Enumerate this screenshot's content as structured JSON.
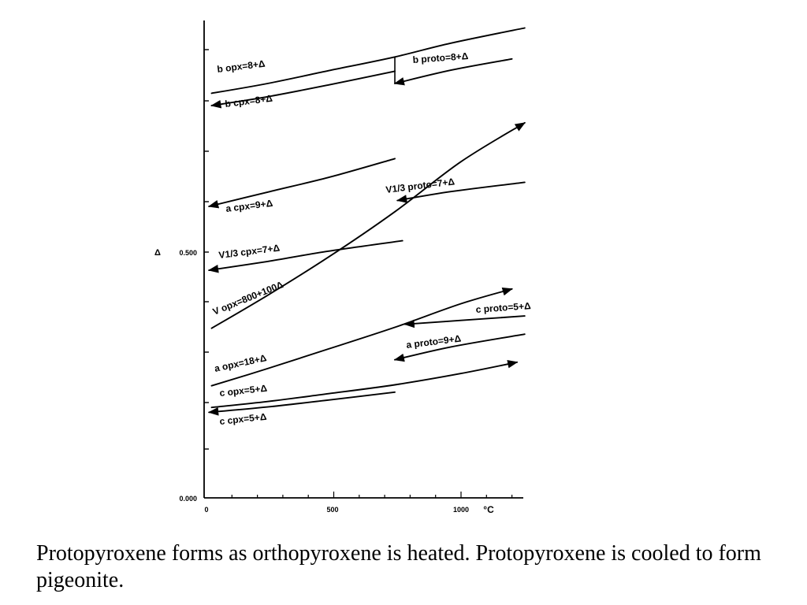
{
  "chart_data": {
    "type": "line",
    "x_unit_label": "°C",
    "y_axis_label": "Δ",
    "x_ticks": [
      {
        "value": 0,
        "label": "0"
      },
      {
        "value": 500,
        "label": "500"
      },
      {
        "value": 1000,
        "label": "1000"
      }
    ],
    "y_ticks": [
      {
        "value": 0,
        "label": "0.000"
      },
      {
        "value": 0.5,
        "label": "0.500"
      }
    ],
    "xlim": [
      0,
      1250
    ],
    "ylim": [
      0,
      0.96
    ],
    "series": [
      {
        "name": "b opx=8+Δ",
        "arrow": "none",
        "points": [
          [
            20,
            0.823
          ],
          [
            240,
            0.843
          ],
          [
            480,
            0.869
          ],
          [
            740,
            0.897
          ],
          [
            960,
            0.925
          ],
          [
            1250,
            0.956
          ]
        ]
      },
      {
        "name": "b proto=8+Δ",
        "arrow": "start",
        "points": [
          [
            740,
            0.843
          ],
          [
            960,
            0.87
          ],
          [
            1200,
            0.893
          ]
        ]
      },
      {
        "name": "b cpx=8+Δ",
        "arrow": "start",
        "points": [
          [
            20,
            0.798
          ],
          [
            240,
            0.816
          ],
          [
            480,
            0.84
          ],
          [
            740,
            0.868
          ]
        ]
      },
      {
        "name": "a cpx=9+Δ",
        "arrow": "start",
        "points": [
          [
            10,
            0.593
          ],
          [
            240,
            0.622
          ],
          [
            480,
            0.652
          ],
          [
            740,
            0.69
          ]
        ]
      },
      {
        "name": "V1/3 proto=7+Δ",
        "arrow": "start",
        "points": [
          [
            750,
            0.605
          ],
          [
            960,
            0.623
          ],
          [
            1250,
            0.642
          ]
        ]
      },
      {
        "name": "V1/3 cpx=7+Δ",
        "arrow": "start",
        "points": [
          [
            10,
            0.463
          ],
          [
            240,
            0.481
          ],
          [
            480,
            0.502
          ],
          [
            770,
            0.523
          ]
        ]
      },
      {
        "name": "V opx=800+100Δ",
        "arrow": "end",
        "points": [
          [
            20,
            0.345
          ],
          [
            240,
            0.412
          ],
          [
            480,
            0.49
          ],
          [
            740,
            0.582
          ],
          [
            1000,
            0.684
          ],
          [
            1250,
            0.763
          ]
        ]
      },
      {
        "name": "c proto=5+Δ",
        "arrow": "start",
        "points": [
          [
            780,
            0.353
          ],
          [
            1000,
            0.361
          ],
          [
            1250,
            0.37
          ]
        ]
      },
      {
        "name": "a opx=18+Δ",
        "arrow": "end",
        "points": [
          [
            20,
            0.228
          ],
          [
            240,
            0.263
          ],
          [
            480,
            0.303
          ],
          [
            740,
            0.347
          ],
          [
            1000,
            0.395
          ],
          [
            1200,
            0.425
          ]
        ]
      },
      {
        "name": "a proto=9+Δ",
        "arrow": "start",
        "points": [
          [
            740,
            0.281
          ],
          [
            960,
            0.307
          ],
          [
            1250,
            0.333
          ]
        ]
      },
      {
        "name": "c opx=5+Δ",
        "arrow": "end",
        "points": [
          [
            20,
            0.184
          ],
          [
            240,
            0.196
          ],
          [
            480,
            0.212
          ],
          [
            740,
            0.23
          ],
          [
            1000,
            0.253
          ],
          [
            1220,
            0.276
          ]
        ]
      },
      {
        "name": "c cpx=5+Δ",
        "arrow": "start",
        "points": [
          [
            10,
            0.174
          ],
          [
            240,
            0.185
          ],
          [
            480,
            0.199
          ],
          [
            740,
            0.215
          ]
        ]
      }
    ]
  },
  "caption": {
    "text": "Protopyroxene forms as orthopyroxene is heated. Protopyroxene is cooled to form pigeonite."
  }
}
